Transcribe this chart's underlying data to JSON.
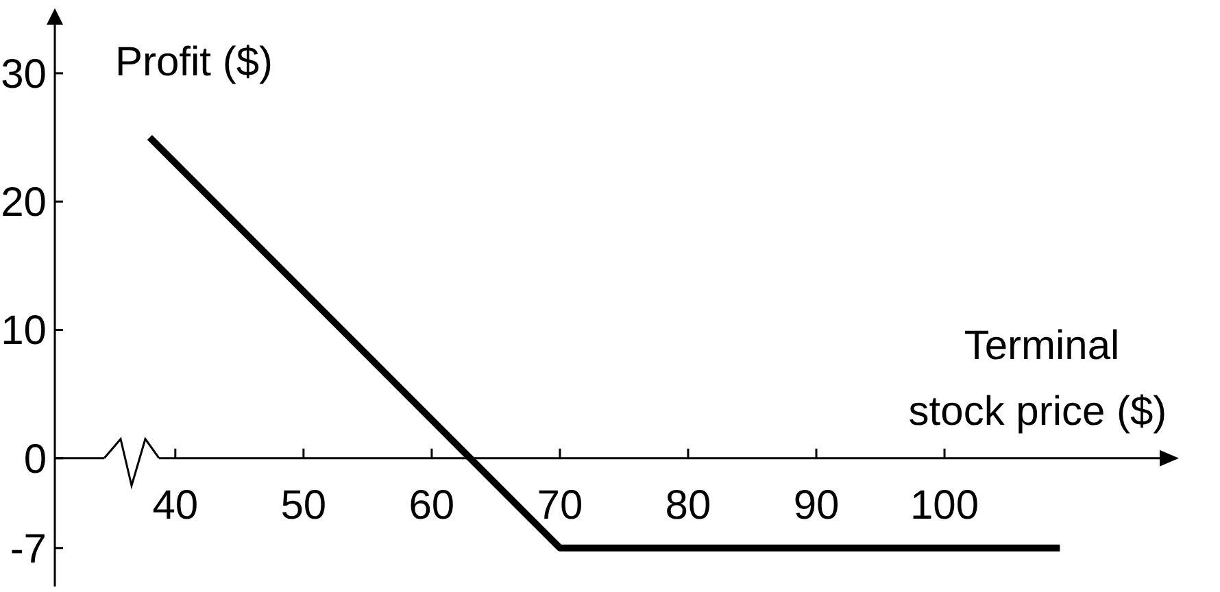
{
  "chart_data": {
    "type": "line",
    "xlabel": "Terminal\nstock price ($)",
    "ylabel": "Profit ($)",
    "xlim": [
      30.6,
      117
    ],
    "xticks": [
      40,
      50,
      60,
      70,
      80,
      90,
      100
    ],
    "ylim": [
      -10,
      34
    ],
    "yticks": [
      30,
      20,
      10,
      0,
      -7
    ],
    "series": [
      {
        "color": "#000000",
        "x": [
          38,
          70,
          109
        ],
        "values": [
          25,
          -7,
          -7
        ]
      }
    ],
    "grid": false,
    "marker": "none",
    "line_style": "solid"
  }
}
